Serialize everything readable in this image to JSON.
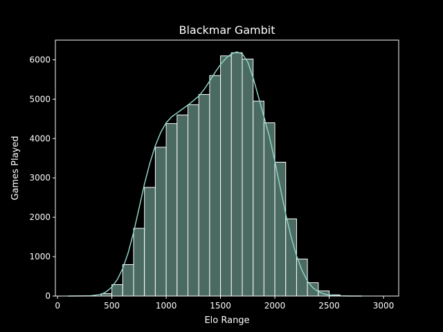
{
  "chart_data": {
    "type": "bar",
    "title": "Blackmar Gambit",
    "xlabel": "Elo Range",
    "ylabel": "Games Played",
    "xlim": [
      -20,
      3140
    ],
    "ylim": [
      0,
      6500
    ],
    "xticks": [
      0,
      500,
      1000,
      1500,
      2000,
      2500,
      3000
    ],
    "yticks": [
      0,
      1000,
      2000,
      3000,
      4000,
      5000,
      6000
    ],
    "bin_width": 100,
    "bins": [
      {
        "start": 400,
        "end": 500,
        "value": 60
      },
      {
        "start": 500,
        "end": 600,
        "value": 290
      },
      {
        "start": 600,
        "end": 700,
        "value": 800
      },
      {
        "start": 700,
        "end": 800,
        "value": 1720
      },
      {
        "start": 800,
        "end": 900,
        "value": 2760
      },
      {
        "start": 900,
        "end": 1000,
        "value": 3780
      },
      {
        "start": 1000,
        "end": 1100,
        "value": 4380
      },
      {
        "start": 1100,
        "end": 1200,
        "value": 4600
      },
      {
        "start": 1200,
        "end": 1300,
        "value": 4860
      },
      {
        "start": 1300,
        "end": 1400,
        "value": 5120
      },
      {
        "start": 1400,
        "end": 1500,
        "value": 5600
      },
      {
        "start": 1500,
        "end": 1600,
        "value": 6100
      },
      {
        "start": 1600,
        "end": 1700,
        "value": 6180
      },
      {
        "start": 1700,
        "end": 1800,
        "value": 6020
      },
      {
        "start": 1800,
        "end": 1900,
        "value": 4950
      },
      {
        "start": 1900,
        "end": 2000,
        "value": 4400
      },
      {
        "start": 2000,
        "end": 2100,
        "value": 3400
      },
      {
        "start": 2100,
        "end": 2200,
        "value": 1960
      },
      {
        "start": 2200,
        "end": 2300,
        "value": 940
      },
      {
        "start": 2300,
        "end": 2400,
        "value": 340
      },
      {
        "start": 2400,
        "end": 2500,
        "value": 130
      },
      {
        "start": 2500,
        "end": 2600,
        "value": 30
      }
    ],
    "kde": {
      "x": [
        100,
        300,
        400,
        450,
        500,
        550,
        600,
        650,
        700,
        750,
        800,
        850,
        900,
        950,
        1000,
        1050,
        1100,
        1150,
        1200,
        1250,
        1300,
        1350,
        1400,
        1450,
        1500,
        1550,
        1600,
        1650,
        1700,
        1750,
        1800,
        1850,
        1900,
        1950,
        2000,
        2050,
        2100,
        2150,
        2200,
        2250,
        2300,
        2350,
        2400,
        2450,
        2500,
        2600,
        2700,
        2800
      ],
      "y": [
        0,
        5,
        40,
        110,
        230,
        420,
        700,
        1100,
        1620,
        2230,
        2850,
        3380,
        3820,
        4160,
        4400,
        4550,
        4650,
        4750,
        4850,
        4960,
        5080,
        5250,
        5460,
        5680,
        5880,
        6040,
        6150,
        6200,
        6150,
        5950,
        5550,
        5050,
        4550,
        4050,
        3420,
        2750,
        2080,
        1500,
        1020,
        650,
        380,
        210,
        110,
        55,
        25,
        5,
        0,
        0
      ]
    },
    "colors": {
      "background": "#000000",
      "bar_fill": "#4b6b62",
      "bar_edge": "#ffffff",
      "kde_line": "#8dd3c7",
      "axis": "#ffffff"
    },
    "grid": false
  }
}
